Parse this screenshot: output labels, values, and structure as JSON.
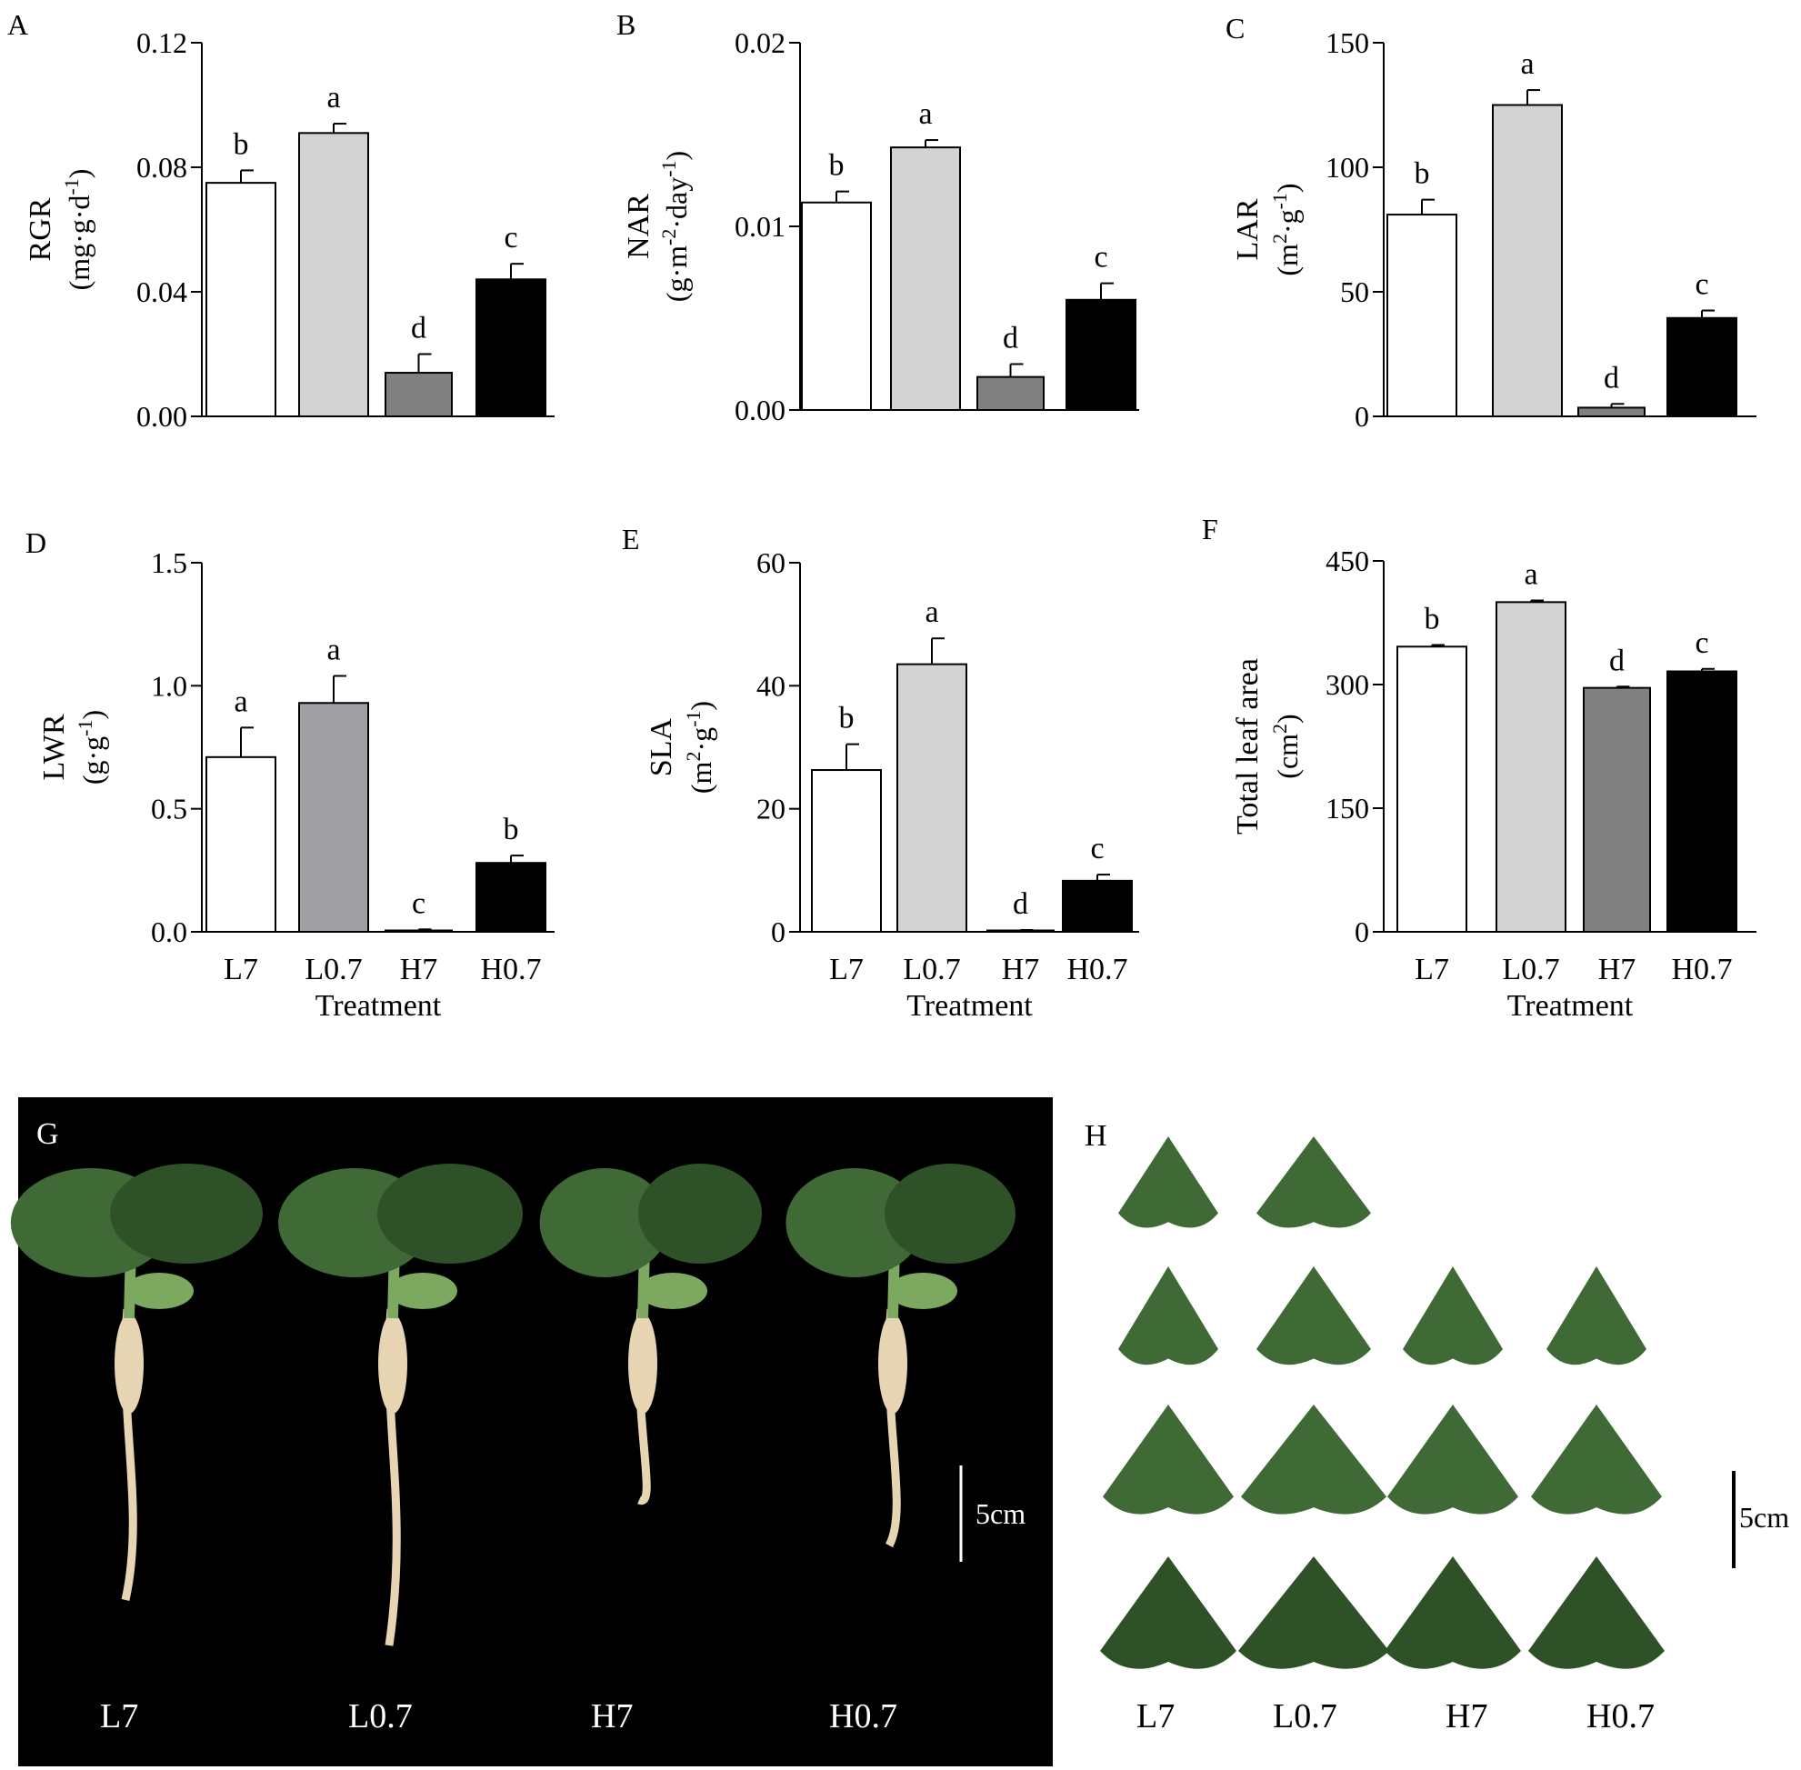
{
  "treatments": [
    "L7",
    "L0.7",
    "H7",
    "H0.7"
  ],
  "colors": {
    "L7": "#ffffff",
    "L0.7": "#d3d3d3",
    "H7": "#808080",
    "H0.7": "#000000",
    "lwr_L0.7": "#a0a0a4",
    "photo_bg": "#000000",
    "photo_label": "#ffffff",
    "leaf": "#3f6a36",
    "leaf_dark": "#2f5128",
    "stem": "#7da860",
    "root": "#e7d4b2"
  },
  "chart_data": [
    {
      "panel": "A",
      "type": "bar",
      "categories": [
        "L7",
        "L0.7",
        "H7",
        "H0.7"
      ],
      "values": [
        0.075,
        0.091,
        0.014,
        0.044
      ],
      "errors": [
        0.004,
        0.003,
        0.006,
        0.005
      ],
      "letters": [
        "b",
        "a",
        "d",
        "c"
      ],
      "ylabel": "RGR",
      "yunit_base": "(mg·g·d",
      "yunit_sup": "-1",
      "yunit_tail": ")",
      "ylim": [
        0,
        0.12
      ],
      "yticks": [
        "0.00",
        "0.04",
        "0.08",
        "0.12"
      ],
      "xlabel": "",
      "show_xticks": false
    },
    {
      "panel": "B",
      "type": "bar",
      "categories": [
        "L7",
        "L0.7",
        "H7",
        "H0.7"
      ],
      "values": [
        0.0113,
        0.0143,
        0.0018,
        0.006
      ],
      "errors": [
        0.0006,
        0.0004,
        0.0007,
        0.0009
      ],
      "letters": [
        "b",
        "a",
        "d",
        "c"
      ],
      "ylabel": "NAR",
      "yunit_base": "(g·m",
      "yunit_sup": "-2",
      "yunit_mid": "·day",
      "yunit_sup2": "-1",
      "yunit_tail": ")",
      "ylim": [
        0,
        0.02
      ],
      "yticks": [
        "0.00",
        "0.01",
        "0.02"
      ],
      "xlabel": "",
      "show_xticks": false
    },
    {
      "panel": "C",
      "type": "bar",
      "categories": [
        "L7",
        "L0.7",
        "H7",
        "H0.7"
      ],
      "values": [
        81,
        125,
        3.5,
        39.5
      ],
      "errors": [
        6,
        6,
        1.5,
        3
      ],
      "letters": [
        "b",
        "a",
        "d",
        "c"
      ],
      "ylabel": "LAR",
      "yunit_base": "(m",
      "yunit_sup": "2",
      "yunit_mid": "·g",
      "yunit_sup2": "-1",
      "yunit_tail": ")",
      "ylim": [
        0,
        150
      ],
      "yticks": [
        "0",
        "50",
        "100",
        "150"
      ],
      "xlabel": "",
      "show_xticks": false
    },
    {
      "panel": "D",
      "type": "bar",
      "categories": [
        "L7",
        "L0.7",
        "H7",
        "H0.7"
      ],
      "values": [
        0.71,
        0.93,
        0.005,
        0.28
      ],
      "errors": [
        0.12,
        0.11,
        0.005,
        0.03
      ],
      "letters": [
        "a",
        "a",
        "c",
        "b"
      ],
      "ylabel": "LWR",
      "yunit_base": "(g·g",
      "yunit_sup": "-1",
      "yunit_tail": ")",
      "ylim": [
        0,
        1.5
      ],
      "yticks": [
        "0.0",
        "0.5",
        "1.0",
        "1.5"
      ],
      "xlabel": "Treatment",
      "show_xticks": true
    },
    {
      "panel": "E",
      "type": "bar",
      "categories": [
        "L7",
        "L0.7",
        "H7",
        "H0.7"
      ],
      "values": [
        26.3,
        43.5,
        0.2,
        8.3
      ],
      "errors": [
        4.2,
        4.2,
        0.1,
        1.0
      ],
      "letters": [
        "b",
        "a",
        "d",
        "c"
      ],
      "ylabel": "SLA",
      "yunit_base": "(m",
      "yunit_sup": "2",
      "yunit_mid": "·g",
      "yunit_sup2": "-1",
      "yunit_tail": ")",
      "ylim": [
        0,
        60
      ],
      "yticks": [
        "0",
        "20",
        "40",
        "60"
      ],
      "xlabel": "Treatment",
      "show_xticks": true
    },
    {
      "panel": "F",
      "type": "bar",
      "categories": [
        "L7",
        "L0.7",
        "H7",
        "H0.7"
      ],
      "values": [
        346,
        400,
        296,
        316
      ],
      "errors": [
        2,
        2,
        1.5,
        3
      ],
      "letters": [
        "b",
        "a",
        "d",
        "c"
      ],
      "ylabel": "Total leaf area",
      "yunit_base": "(cm",
      "yunit_sup": "2",
      "yunit_tail": ")",
      "ylim": [
        0,
        450
      ],
      "yticks": [
        "0",
        "150",
        "300",
        "450"
      ],
      "xlabel": "Treatment",
      "show_xticks": true
    }
  ],
  "photo_g": {
    "panel": "G",
    "labels": [
      "L7",
      "L0.7",
      "H7",
      "H0.7"
    ],
    "scale_label": "5cm"
  },
  "photo_h": {
    "panel": "H",
    "labels": [
      "L7",
      "L0.7",
      "H7",
      "H0.7"
    ],
    "scale_label": "5cm"
  }
}
